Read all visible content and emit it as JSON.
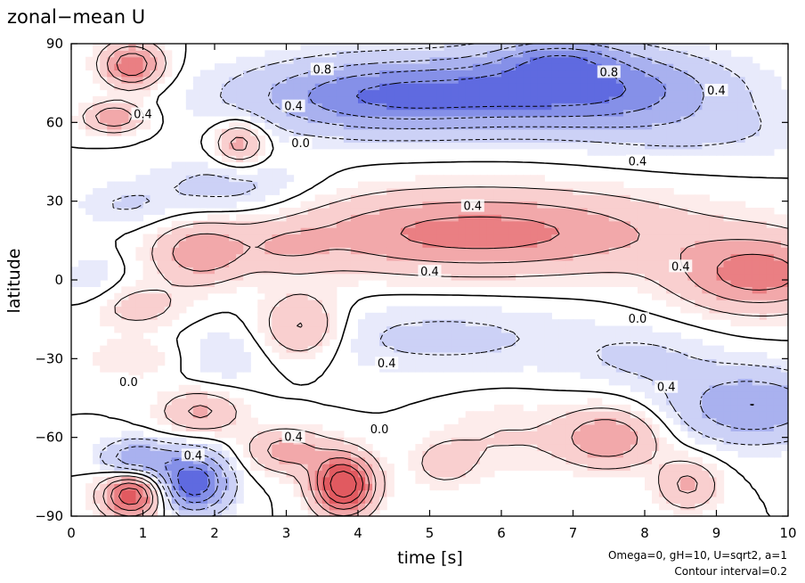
{
  "chart_data": {
    "type": "heatmap",
    "title": "zonal−mean U",
    "xlabel": "time [s]",
    "ylabel": "latitude",
    "xlim": [
      0,
      10
    ],
    "ylim": [
      -90,
      90
    ],
    "x_ticks": [
      "0",
      "1",
      "2",
      "3",
      "4",
      "5",
      "6",
      "7",
      "8",
      "9",
      "10"
    ],
    "y_ticks": [
      "90",
      "60",
      "30",
      "0",
      "−30",
      "−60",
      "−90"
    ],
    "annotations": [
      "Omega=0, gH=10, U=sqrt2, a=1",
      "Contour interval=0.2"
    ],
    "contour_labels": [
      {
        "text": "0.8",
        "x": 3.5,
        "y": 80
      },
      {
        "text": "0.4",
        "x": 3.1,
        "y": 66
      },
      {
        "text": "0.4",
        "x": 1.0,
        "y": 63
      },
      {
        "text": "0.0",
        "x": 3.2,
        "y": 52
      },
      {
        "text": "0.8",
        "x": 7.5,
        "y": 79
      },
      {
        "text": "0.4",
        "x": 9.0,
        "y": 72
      },
      {
        "text": "0.4",
        "x": 7.9,
        "y": 45
      },
      {
        "text": "0.4",
        "x": 5.6,
        "y": 28
      },
      {
        "text": "0.4",
        "x": 5.0,
        "y": 3
      },
      {
        "text": "0.4",
        "x": 8.5,
        "y": 5
      },
      {
        "text": "0.0",
        "x": 7.9,
        "y": -15
      },
      {
        "text": "0.4",
        "x": 4.4,
        "y": -32
      },
      {
        "text": "0.0",
        "x": 0.8,
        "y": -39
      },
      {
        "text": "0.4",
        "x": 8.3,
        "y": -41
      },
      {
        "text": "0.0",
        "x": 4.3,
        "y": -57
      },
      {
        "text": "0.4",
        "x": 3.1,
        "y": -60
      },
      {
        "text": "0.4",
        "x": 1.7,
        "y": -67
      }
    ],
    "features": [
      {
        "sign": "positive",
        "x": 5.7,
        "y": 18,
        "sx": 2.0,
        "sy": 11,
        "amp": 0.7
      },
      {
        "sign": "positive",
        "x": 9.6,
        "y": 2,
        "sx": 0.8,
        "sy": 10,
        "amp": 0.7
      },
      {
        "sign": "positive",
        "x": 3.8,
        "y": -78,
        "sx": 0.3,
        "sy": 8,
        "amp": 1.2
      },
      {
        "sign": "positive",
        "x": 0.85,
        "y": -82,
        "sx": 0.3,
        "sy": 6,
        "amp": 1.0
      },
      {
        "sign": "positive",
        "x": 0.85,
        "y": 82,
        "sx": 0.3,
        "sy": 6,
        "amp": 0.8
      },
      {
        "sign": "positive",
        "x": 0.6,
        "y": 62,
        "sx": 0.3,
        "sy": 4,
        "amp": 0.6
      },
      {
        "sign": "positive",
        "x": 2.35,
        "y": 52,
        "sx": 0.25,
        "sy": 6,
        "amp": 0.55
      },
      {
        "sign": "positive",
        "x": 1.8,
        "y": 10,
        "sx": 0.45,
        "sy": 8,
        "amp": 0.5
      },
      {
        "sign": "positive",
        "x": 3.2,
        "y": -18,
        "sx": 0.4,
        "sy": 9,
        "amp": 0.5
      },
      {
        "sign": "positive",
        "x": 0.9,
        "y": -10,
        "sx": 0.5,
        "sy": 6,
        "amp": 0.3
      },
      {
        "sign": "positive",
        "x": 1.8,
        "y": -50,
        "sx": 0.4,
        "sy": 6,
        "amp": 0.45
      },
      {
        "sign": "positive",
        "x": 3.0,
        "y": -65,
        "sx": 0.4,
        "sy": 6,
        "amp": 0.5
      },
      {
        "sign": "positive",
        "x": 5.2,
        "y": -70,
        "sx": 0.3,
        "sy": 6,
        "amp": 0.3
      },
      {
        "sign": "positive",
        "x": 6.0,
        "y": -60,
        "sx": 0.6,
        "sy": 10,
        "amp": 0.2
      },
      {
        "sign": "positive",
        "x": 7.5,
        "y": -60,
        "sx": 0.5,
        "sy": 8,
        "amp": 0.6
      },
      {
        "sign": "positive",
        "x": 8.6,
        "y": -78,
        "sx": 0.3,
        "sy": 7,
        "amp": 0.45
      },
      {
        "sign": "positive",
        "x": 1.0,
        "y": -30,
        "sx": 0.6,
        "sy": 6,
        "amp": 0.2
      },
      {
        "sign": "positive",
        "x": 3.0,
        "y": 12,
        "sx": 0.4,
        "sy": 6,
        "amp": 0.2
      },
      {
        "sign": "negative",
        "x": 4.4,
        "y": 70,
        "sx": 1.4,
        "sy": 10,
        "amp": 0.8
      },
      {
        "sign": "negative",
        "x": 7.2,
        "y": 73,
        "sx": 1.3,
        "sy": 10,
        "amp": 0.8
      },
      {
        "sign": "negative",
        "x": 6.8,
        "y": 85,
        "sx": 0.6,
        "sy": 5,
        "amp": 0.4
      },
      {
        "sign": "negative",
        "x": 1.7,
        "y": -77,
        "sx": 0.35,
        "sy": 8,
        "amp": 1.0
      },
      {
        "sign": "negative",
        "x": 0.9,
        "y": -68,
        "sx": 0.35,
        "sy": 5,
        "amp": 0.6
      },
      {
        "sign": "negative",
        "x": 9.5,
        "y": -48,
        "sx": 0.8,
        "sy": 10,
        "amp": 0.6
      },
      {
        "sign": "negative",
        "x": 5.2,
        "y": -22,
        "sx": 1.5,
        "sy": 10,
        "amp": 0.25
      },
      {
        "sign": "negative",
        "x": 8.0,
        "y": -30,
        "sx": 0.7,
        "sy": 8,
        "amp": 0.2
      },
      {
        "sign": "negative",
        "x": 2.2,
        "y": 35,
        "sx": 0.8,
        "sy": 8,
        "amp": 0.3
      },
      {
        "sign": "negative",
        "x": 0.7,
        "y": 28,
        "sx": 0.5,
        "sy": 6,
        "amp": 0.2
      },
      {
        "sign": "negative",
        "x": 2.0,
        "y": -30,
        "sx": 0.5,
        "sy": 8,
        "amp": 0.2
      },
      {
        "sign": "negative",
        "x": 0.3,
        "y": 0,
        "sx": 0.3,
        "sy": 8,
        "amp": 0.2
      },
      {
        "sign": "negative",
        "x": 8.8,
        "y": 56,
        "sx": 1.2,
        "sy": 8,
        "amp": 0.2
      }
    ],
    "colors": {
      "positive": "#e5575b",
      "negative": "#4a5bdd",
      "contour": "#000000"
    },
    "contour_levels": [
      -0.8,
      -0.6,
      -0.4,
      -0.2,
      0.0,
      0.2,
      0.4,
      0.6,
      0.8,
      1.0
    ]
  }
}
